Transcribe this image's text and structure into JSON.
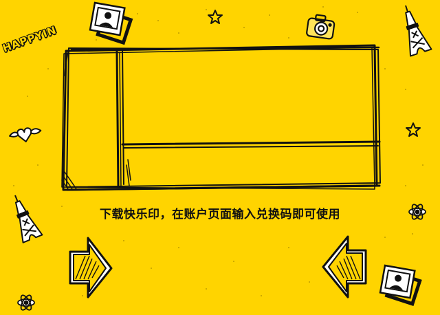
{
  "caption": "下载快乐印，在账户页面输入兑换码即可使用",
  "brand": {
    "logo_text": "HAPPYIN"
  },
  "colors": {
    "background": "#FFD400",
    "ink": "#111111",
    "paper": "#FFFFFF"
  },
  "icons": [
    "photo-print-icon",
    "star-icon",
    "camera-icon",
    "eiffel-tower-icon",
    "heart-icon",
    "atom-icon",
    "arrow-right-icon",
    "arrow-left-icon"
  ]
}
